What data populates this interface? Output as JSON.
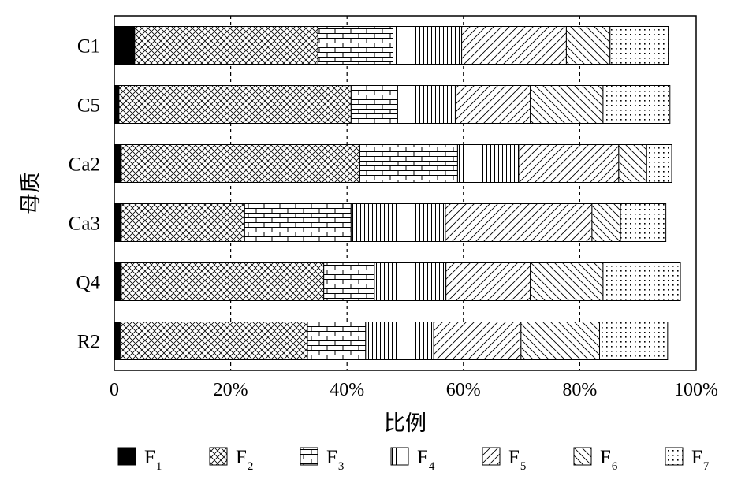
{
  "chart_data": {
    "type": "bar",
    "orientation": "horizontal",
    "stacked": true,
    "title": "",
    "xlabel": "比例",
    "ylabel": "母质",
    "xlim": [
      0,
      100
    ],
    "xticks": [
      "0",
      "20%",
      "40%",
      "60%",
      "80%",
      "100%"
    ],
    "grid": "vertical dashed lines at 20%, 40%, 60%, 80%",
    "legend_position": "bottom",
    "categories": [
      "C1",
      "C5",
      "Ca2",
      "Ca3",
      "Q4",
      "R2"
    ],
    "series": [
      {
        "name": "F1",
        "label_main": "F",
        "label_sub": "1",
        "pattern": "solid-black",
        "values": [
          3.5,
          0.8,
          1.2,
          1.2,
          1.2,
          1.0
        ]
      },
      {
        "name": "F2",
        "label_main": "F",
        "label_sub": "2",
        "pattern": "crosshatch",
        "values": [
          31.5,
          39.9,
          41.0,
          21.2,
          34.8,
          32.2
        ]
      },
      {
        "name": "F3",
        "label_main": "F",
        "label_sub": "3",
        "pattern": "brick",
        "values": [
          12.9,
          8.0,
          16.8,
          18.3,
          8.7,
          10.0
        ]
      },
      {
        "name": "F4",
        "label_main": "F",
        "label_sub": "4",
        "pattern": "vertical",
        "values": [
          11.8,
          9.9,
          10.5,
          16.2,
          12.3,
          11.7
        ]
      },
      {
        "name": "F5",
        "label_main": "F",
        "label_sub": "5",
        "pattern": "diag-up",
        "values": [
          18.0,
          12.9,
          17.2,
          25.2,
          14.5,
          15.0
        ]
      },
      {
        "name": "F6",
        "label_main": "F",
        "label_sub": "6",
        "pattern": "diag-down",
        "values": [
          7.5,
          12.5,
          4.8,
          4.9,
          12.5,
          13.5
        ]
      },
      {
        "name": "F7",
        "label_main": "F",
        "label_sub": "7",
        "pattern": "dots",
        "values": [
          10.0,
          11.5,
          4.3,
          7.8,
          13.3,
          11.7
        ]
      }
    ]
  }
}
